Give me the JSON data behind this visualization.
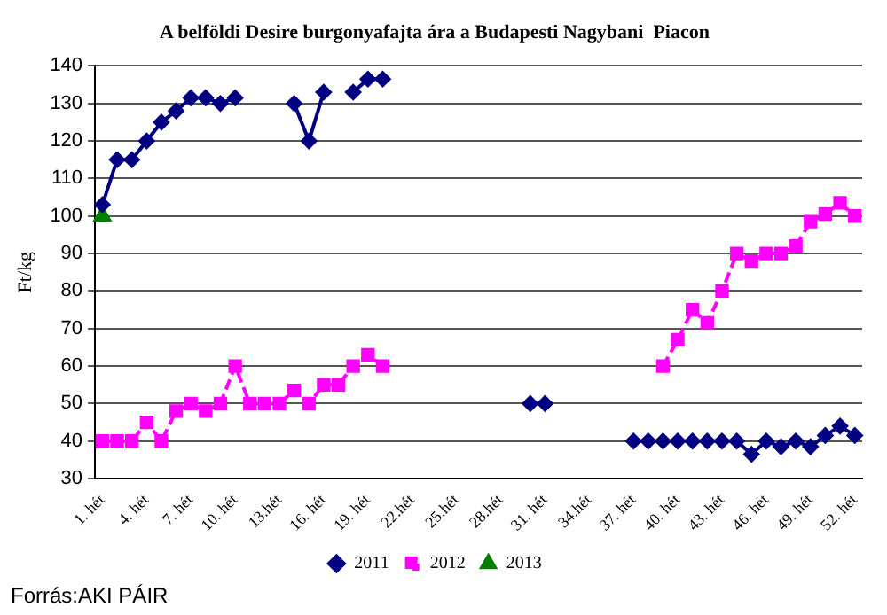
{
  "chart_data": {
    "type": "line",
    "title": "A belföldi Desire burgonyafajta ára a Budapesti Nagybani  Piacon",
    "ylabel": "Ft/kg",
    "categories": [
      "1. hét",
      null,
      null,
      "4. hét",
      null,
      null,
      "7. hét",
      null,
      null,
      "10. hét",
      null,
      null,
      "13.hét",
      null,
      null,
      "16. hét",
      null,
      null,
      "19. hét",
      null,
      null,
      "22.hét",
      null,
      null,
      "25.hét",
      null,
      null,
      "28.hét",
      null,
      null,
      "31. hét",
      null,
      null,
      "34.hét",
      null,
      null,
      "37. hét",
      null,
      null,
      "40. hét",
      null,
      null,
      "43. hét",
      null,
      null,
      "46. hét",
      null,
      null,
      "49. hét",
      null,
      null,
      "52. hét"
    ],
    "series": [
      {
        "name": "2011",
        "color": "#000080",
        "marker": "diamond",
        "line_style": "solid",
        "values": [
          103,
          115,
          115,
          120,
          125,
          128,
          131.5,
          131.5,
          130,
          131.5,
          null,
          null,
          null,
          130,
          120,
          133,
          null,
          133,
          136.5,
          136.5,
          null,
          null,
          null,
          null,
          null,
          null,
          null,
          null,
          null,
          50,
          50,
          null,
          null,
          null,
          null,
          null,
          40,
          40,
          40,
          40,
          40,
          40,
          40,
          40,
          36.5,
          40,
          38.5,
          40,
          38.5,
          41.5,
          44,
          41.5
        ]
      },
      {
        "name": "2012",
        "color": "#ff00ff",
        "marker": "square",
        "line_style": "dashed",
        "values": [
          40,
          40,
          40,
          45,
          40,
          48,
          50,
          48,
          50,
          60,
          50,
          50,
          50,
          53.5,
          50,
          55,
          55,
          60,
          63,
          60,
          null,
          null,
          null,
          null,
          null,
          null,
          null,
          null,
          null,
          null,
          null,
          null,
          null,
          null,
          null,
          null,
          null,
          null,
          60,
          67,
          75,
          71.5,
          80,
          90,
          88,
          90,
          90,
          92,
          98.5,
          100.5,
          103.5,
          100
        ]
      },
      {
        "name": "2013",
        "color": "#008000",
        "marker": "triangle",
        "line_style": "solid",
        "values": [
          100,
          null,
          null,
          null,
          null,
          null,
          null,
          null,
          null,
          null,
          null,
          null,
          null,
          null,
          null,
          null,
          null,
          null,
          null,
          null,
          null,
          null,
          null,
          null,
          null,
          null,
          null,
          null,
          null,
          null,
          null,
          null,
          null,
          null,
          null,
          null,
          null,
          null,
          null,
          null,
          null,
          null,
          null,
          null,
          null,
          null,
          null,
          null,
          null,
          null,
          null,
          null
        ]
      }
    ],
    "ylim": [
      30,
      140
    ],
    "yticks": [
      30,
      40,
      50,
      60,
      70,
      80,
      90,
      100,
      110,
      120,
      130,
      140
    ],
    "grid": "y",
    "legend": "bottom",
    "annotations": [
      "Forrás:AKI PÁIR"
    ]
  }
}
